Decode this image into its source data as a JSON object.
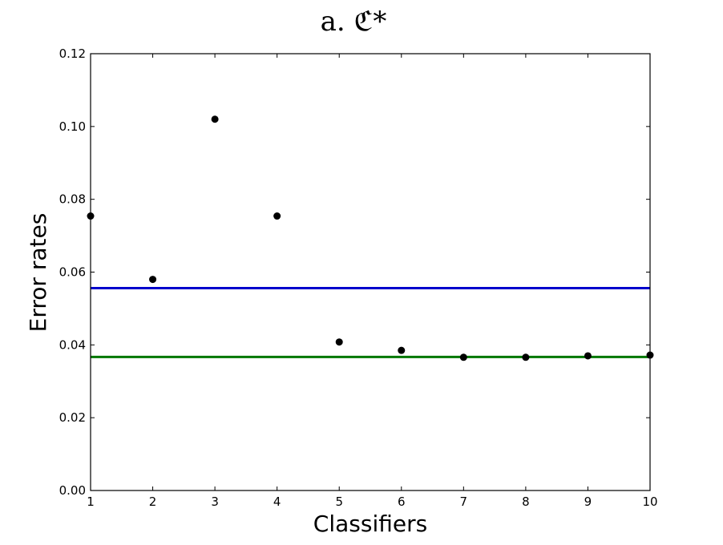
{
  "chart_data": {
    "type": "scatter",
    "title": "a. ℭ*",
    "xlabel": "Classifiers",
    "ylabel": "Error rates",
    "xlim": [
      1,
      10
    ],
    "ylim": [
      0.0,
      0.12
    ],
    "xticks": [
      "1",
      "2",
      "3",
      "4",
      "5",
      "6",
      "7",
      "8",
      "9",
      "10"
    ],
    "yticks": [
      "0.00",
      "0.02",
      "0.04",
      "0.06",
      "0.08",
      "0.10",
      "0.12"
    ],
    "grid": false,
    "series": [
      {
        "x": [
          1,
          2,
          3,
          4,
          5,
          6,
          7,
          8,
          9,
          10
        ],
        "values": [
          0.0754,
          0.058,
          0.102,
          0.0754,
          0.0408,
          0.0385,
          0.0366,
          0.0366,
          0.037,
          0.0372
        ],
        "color": "#000000"
      }
    ],
    "hlines": [
      {
        "y": 0.0556,
        "color": "#0000cc"
      },
      {
        "y": 0.0367,
        "color": "#007700"
      }
    ]
  }
}
